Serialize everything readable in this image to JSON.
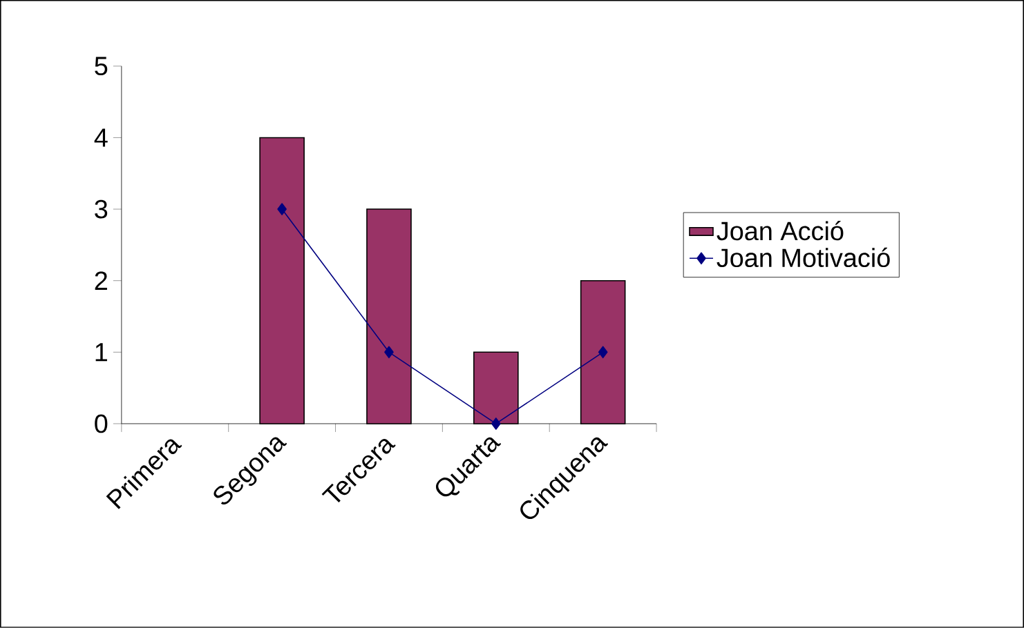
{
  "chart_data": {
    "type": "bar",
    "categories": [
      "Primera",
      "Segona",
      "Tercera",
      "Quarta",
      "Cinquena"
    ],
    "series": [
      {
        "name": "Joan Acció",
        "color": "#993366",
        "values": [
          null,
          4,
          3,
          1,
          2
        ]
      },
      {
        "name": "Joan Motivació",
        "type": "line",
        "color": "#000080",
        "marker": "diamond",
        "values": [
          null,
          3,
          1,
          0,
          1
        ]
      }
    ],
    "ylim": [
      0,
      5
    ],
    "yticks": [
      0,
      1,
      2,
      3,
      4,
      5
    ],
    "grid": false,
    "legend": "right"
  }
}
